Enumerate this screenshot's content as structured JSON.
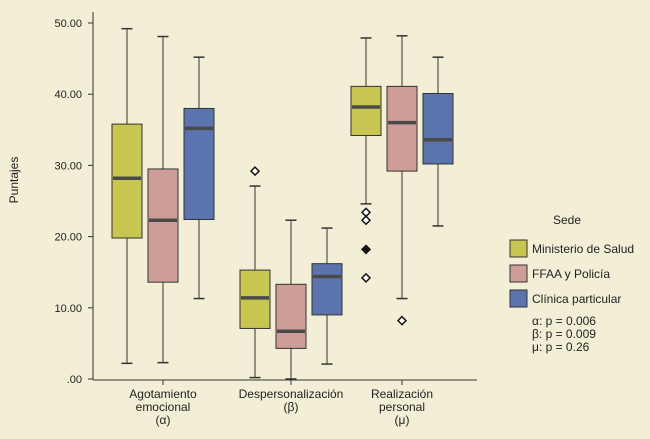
{
  "chart_data": {
    "type": "boxplot",
    "ylabel": "Puntajes",
    "ylim": [
      0,
      50
    ],
    "yticks": [
      0,
      10,
      20,
      30,
      40,
      50
    ],
    "ytick_labels": [
      ".00",
      "10.00",
      "20.00",
      "30.00",
      "40.00",
      "50.00"
    ],
    "categories": [
      {
        "label": [
          "Agotamiento",
          "emocional",
          "(α)"
        ]
      },
      {
        "label": [
          "Despersonalización",
          "(β)"
        ]
      },
      {
        "label": [
          "Realización",
          "personal",
          "(μ)"
        ]
      }
    ],
    "legend": {
      "title": "Sede",
      "position": "right"
    },
    "series": [
      {
        "name": "Ministerio de Salud",
        "color": "#c8c650",
        "boxes": [
          {
            "min": 2.2,
            "q1": 19.8,
            "median": 28.2,
            "q3": 35.8,
            "max": 49.2,
            "outliers": []
          },
          {
            "min": 0.2,
            "q1": 7.1,
            "median": 11.4,
            "q3": 15.3,
            "max": 27.1,
            "outliers": [
              {
                "value": 29.2,
                "marker": "open"
              }
            ]
          },
          {
            "min": 24.6,
            "q1": 34.2,
            "median": 38.2,
            "q3": 41.1,
            "max": 47.9,
            "outliers": [
              {
                "value": 23.4,
                "marker": "open"
              },
              {
                "value": 22.3,
                "marker": "open"
              },
              {
                "value": 18.2,
                "marker": "filled"
              },
              {
                "value": 14.2,
                "marker": "open"
              }
            ]
          }
        ]
      },
      {
        "name": "FFAA y Policía",
        "color": "#cf9d98",
        "boxes": [
          {
            "min": 2.3,
            "q1": 13.6,
            "median": 22.3,
            "q3": 29.5,
            "max": 48.1,
            "outliers": []
          },
          {
            "min": 0.0,
            "q1": 4.3,
            "median": 6.7,
            "q3": 13.3,
            "max": 22.3,
            "outliers": []
          },
          {
            "min": 11.3,
            "q1": 29.2,
            "median": 36.0,
            "q3": 41.1,
            "max": 48.2,
            "outliers": [
              {
                "value": 8.2,
                "marker": "open"
              }
            ]
          }
        ]
      },
      {
        "name": "Clínica particular",
        "color": "#5b74ae",
        "boxes": [
          {
            "min": 11.3,
            "q1": 22.4,
            "median": 35.2,
            "q3": 38.0,
            "max": 45.2,
            "outliers": []
          },
          {
            "min": 2.1,
            "q1": 9.0,
            "median": 14.4,
            "q3": 16.2,
            "max": 21.2,
            "outliers": []
          },
          {
            "min": 21.5,
            "q1": 30.2,
            "median": 33.6,
            "q3": 40.1,
            "max": 45.2,
            "outliers": []
          }
        ]
      }
    ],
    "annotations": [
      "α: p = 0.006",
      "β: p = 0.009",
      "μ: p = 0.26"
    ]
  }
}
